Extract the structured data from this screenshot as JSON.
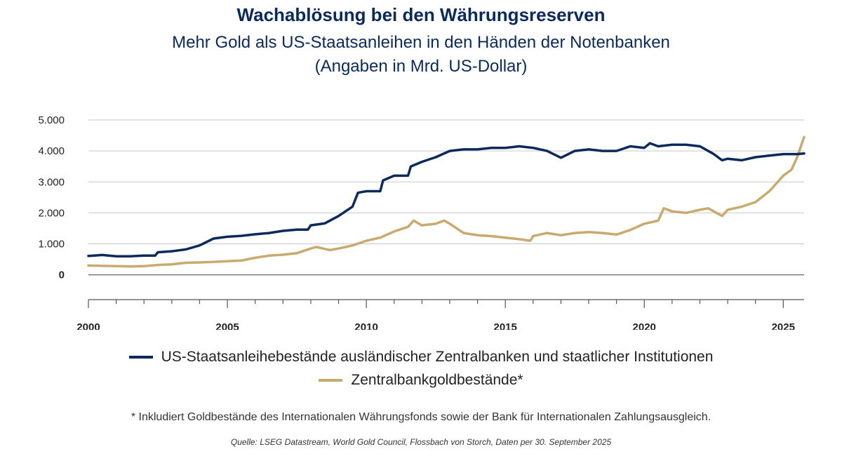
{
  "header": {
    "title": "Wachablösung bei den Währungsreserven",
    "subtitle_line1": "Mehr Gold als US-Staatsanleihen in den Händen der Notenbanken",
    "subtitle_line2": "(Angaben in Mrd. US-Dollar)"
  },
  "legend": {
    "series1": "US-Staatsanleihebestände ausländischer Zentralbanken und staatlicher Institutionen",
    "series2": "Zentralbankgoldbestände*"
  },
  "footnote": "* Inkludiert Goldbestände des Internationalen Währungsfonds sowie der Bank für Internationalen Zahlungsausgleich.",
  "source": "Quelle: LSEG Datastream, World Gold Council, Flossbach von Storch, Daten per 30. September 2025",
  "colors": {
    "treasuries": "#0b2a5b",
    "gold": "#c8aa6e",
    "grid": "#c9c9c9",
    "axis": "#555555"
  },
  "chart_data": {
    "type": "line",
    "title": "Wachablösung bei den Währungsreserven",
    "xlabel": "",
    "ylabel": "Mrd. US-Dollar",
    "xlim": [
      2000,
      2025.75
    ],
    "ylim": [
      -800,
      5000
    ],
    "y_ticks": [
      0,
      1000,
      2000,
      3000,
      4000,
      5000
    ],
    "y_tick_labels": [
      "0",
      "1.000",
      "2.000",
      "3.000",
      "4.000",
      "5.000"
    ],
    "x_ticks": [
      2000,
      2005,
      2010,
      2015,
      2020,
      2025
    ],
    "x_tick_labels": [
      "2000",
      "2005",
      "2010",
      "2015",
      "2020",
      "2025"
    ],
    "grid": true,
    "series": [
      {
        "name": "US-Staatsanleihebestände ausländischer Zentralbanken und staatlicher Institutionen",
        "x": [
          2000,
          2000.5,
          2001,
          2001.5,
          2002,
          2002.4,
          2002.5,
          2003,
          2003.5,
          2004,
          2004.5,
          2005,
          2005.5,
          2006,
          2006.5,
          2007,
          2007.5,
          2007.9,
          2008,
          2008.5,
          2009,
          2009.5,
          2009.7,
          2010,
          2010.5,
          2010.6,
          2011,
          2011.5,
          2011.6,
          2012,
          2012.5,
          2013,
          2013.5,
          2014,
          2014.5,
          2015,
          2015.5,
          2016,
          2016.5,
          2017,
          2017.5,
          2018,
          2018.5,
          2019,
          2019.5,
          2020,
          2020.2,
          2020.5,
          2021,
          2021.5,
          2022,
          2022.5,
          2022.8,
          2023,
          2023.5,
          2024,
          2024.5,
          2025,
          2025.5,
          2025.75
        ],
        "values": [
          610,
          640,
          600,
          600,
          620,
          620,
          730,
          760,
          820,
          950,
          1170,
          1230,
          1260,
          1310,
          1350,
          1420,
          1460,
          1460,
          1600,
          1660,
          1900,
          2200,
          2650,
          2700,
          2700,
          3050,
          3200,
          3200,
          3500,
          3650,
          3800,
          4000,
          4050,
          4050,
          4100,
          4100,
          4150,
          4100,
          4000,
          3780,
          4000,
          4050,
          4000,
          4000,
          4150,
          4100,
          4250,
          4150,
          4200,
          4200,
          4150,
          3900,
          3700,
          3750,
          3700,
          3800,
          3850,
          3900,
          3900,
          3920
        ]
      },
      {
        "name": "Zentralbankgoldbestände*",
        "x": [
          2000,
          2000.5,
          2001,
          2001.5,
          2002,
          2002.5,
          2003,
          2003.5,
          2004,
          2004.5,
          2005,
          2005.5,
          2006,
          2006.5,
          2007,
          2007.5,
          2008,
          2008.2,
          2008.7,
          2009,
          2009.5,
          2010,
          2010.5,
          2011,
          2011.5,
          2011.7,
          2012,
          2012.5,
          2012.8,
          2013,
          2013.5,
          2014,
          2014.5,
          2015,
          2015.5,
          2015.9,
          2016,
          2016.5,
          2017,
          2017.5,
          2018,
          2018.5,
          2019,
          2019.5,
          2020,
          2020.5,
          2020.7,
          2021,
          2021.5,
          2022,
          2022.3,
          2022.8,
          2023,
          2023.5,
          2024,
          2024.5,
          2025,
          2025.3,
          2025.5,
          2025.75
        ],
        "values": [
          300,
          290,
          280,
          270,
          280,
          320,
          340,
          390,
          400,
          420,
          440,
          460,
          550,
          620,
          650,
          700,
          850,
          900,
          800,
          850,
          950,
          1100,
          1200,
          1400,
          1550,
          1750,
          1600,
          1650,
          1750,
          1650,
          1350,
          1280,
          1250,
          1200,
          1150,
          1100,
          1250,
          1350,
          1280,
          1350,
          1380,
          1350,
          1300,
          1450,
          1650,
          1750,
          2150,
          2050,
          2000,
          2100,
          2150,
          1900,
          2100,
          2200,
          2350,
          2700,
          3200,
          3400,
          3800,
          4450
        ]
      }
    ]
  }
}
